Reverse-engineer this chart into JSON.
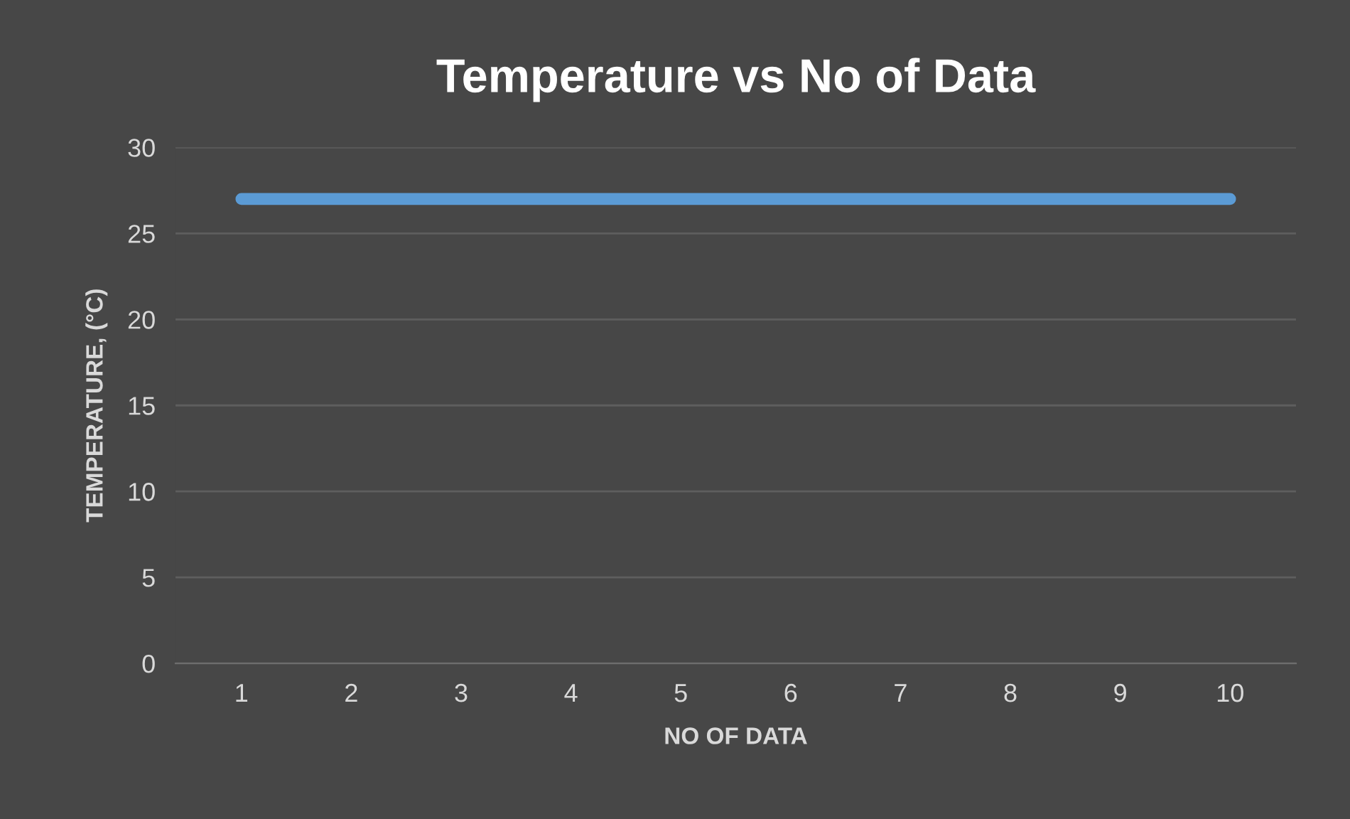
{
  "chart_data": {
    "type": "line",
    "title": "Temperature vs No of Data",
    "xlabel": "NO OF DATA",
    "ylabel": "TEMPERATURE, (°C)",
    "categories": [
      "1",
      "2",
      "3",
      "4",
      "5",
      "6",
      "7",
      "8",
      "9",
      "10"
    ],
    "series": [
      {
        "color": "#5b9bd5",
        "values": [
          27,
          27,
          27,
          27,
          27,
          27,
          27,
          27,
          27,
          27
        ]
      }
    ],
    "ylim": [
      0,
      30
    ],
    "yticks": [
      0,
      5,
      10,
      15,
      20,
      25,
      30
    ],
    "grid": "y",
    "legend": false,
    "marker": "none",
    "line_style": "solid"
  }
}
